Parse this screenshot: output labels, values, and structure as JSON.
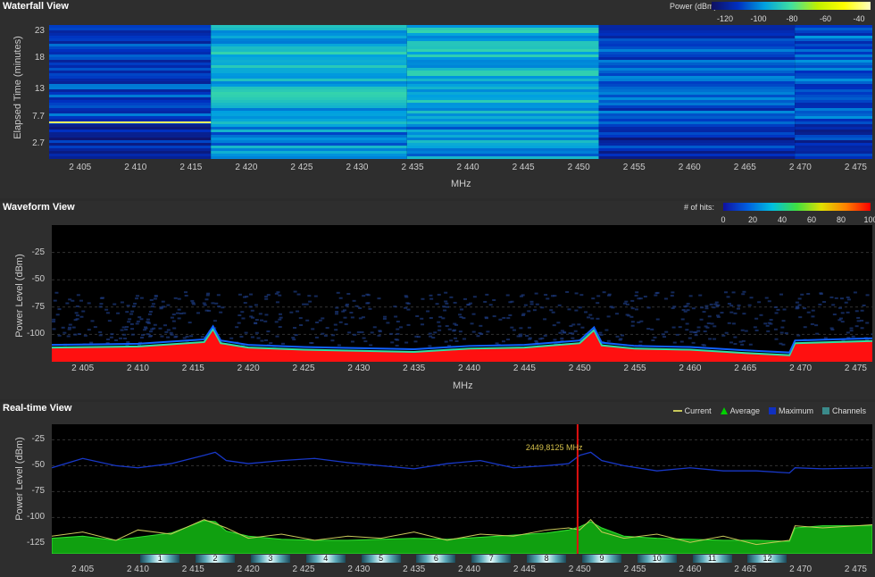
{
  "waterfall": {
    "title": "Waterfall View",
    "scale_label": "Power (dBm):",
    "scale_ticks": [
      "-120",
      "-100",
      "-80",
      "-60",
      "-40"
    ],
    "ylabel": "Elapsed Time (minutes)",
    "yticks": [
      "23",
      "18",
      "13",
      "7.7",
      "2.7"
    ],
    "xlabel": "MHz"
  },
  "waveform": {
    "title": "Waveform View",
    "scale_label": "# of hits:",
    "scale_ticks": [
      "0",
      "20",
      "40",
      "60",
      "80",
      "100"
    ],
    "ylabel": "Power Level (dBm)",
    "yticks": [
      "-25",
      "-50",
      "-75",
      "-100"
    ],
    "xlabel": "MHz"
  },
  "realtime": {
    "title": "Real-time View",
    "ylabel": "Power Level (dBm)",
    "yticks": [
      "-25",
      "-50",
      "-75",
      "-100",
      "-125"
    ],
    "legend": [
      {
        "name": "Current",
        "color": "#c8c85a",
        "shape": "line"
      },
      {
        "name": "Average",
        "color": "#00d000",
        "shape": "tri"
      },
      {
        "name": "Maximum",
        "color": "#1030c0",
        "shape": "box"
      },
      {
        "name": "Channels",
        "color": "#3a8a8a",
        "shape": "box"
      }
    ],
    "marker": {
      "label": "2449,8125 MHz",
      "freq": 2449.8125
    },
    "channels": [
      {
        "label": "1",
        "center": 2412
      },
      {
        "label": "2",
        "center": 2417
      },
      {
        "label": "3",
        "center": 2422
      },
      {
        "label": "4",
        "center": 2427
      },
      {
        "label": "5",
        "center": 2432
      },
      {
        "label": "6",
        "center": 2437
      },
      {
        "label": "7",
        "center": 2442
      },
      {
        "label": "8",
        "center": 2447
      },
      {
        "label": "9",
        "center": 2452
      },
      {
        "label": "10",
        "center": 2457
      },
      {
        "label": "11",
        "center": 2462
      },
      {
        "label": "12",
        "center": 2467
      }
    ]
  },
  "xticks": [
    "2 405",
    "2 410",
    "2 415",
    "2 420",
    "2 425",
    "2 430",
    "2 435",
    "2 440",
    "2 445",
    "2 450",
    "2 455",
    "2 460",
    "2 465",
    "2 470",
    "2 475"
  ],
  "chart_data": [
    {
      "type": "heatmap",
      "title": "Waterfall View",
      "xlabel": "MHz",
      "ylabel": "Elapsed Time (minutes)",
      "xlim": [
        2402.2,
        2476.5
      ],
      "ylim": [
        0,
        25
      ],
      "colorbar": {
        "label": "Power (dBm):",
        "range": [
          -120,
          -30
        ]
      },
      "bands": [
        {
          "x": [
            2402.2,
            2416.8
          ],
          "level": -100
        },
        {
          "x": [
            2416.8,
            2434.5
          ],
          "level": -80
        },
        {
          "x": [
            2434.5,
            2451.8
          ],
          "level": -78
        },
        {
          "x": [
            2451.8,
            2469.5
          ],
          "level": -98
        },
        {
          "x": [
            2469.5,
            2476.5
          ],
          "level": -95
        }
      ]
    },
    {
      "type": "heatmap",
      "title": "Waveform View",
      "xlabel": "MHz",
      "ylabel": "Power Level (dBm)",
      "xlim": [
        2402.2,
        2476.5
      ],
      "ylim": [
        -125,
        0
      ],
      "colorbar": {
        "label": "# of hits:",
        "range": [
          0,
          100
        ]
      },
      "noise_floor": {
        "x": [
          2402.2,
          2410,
          2416,
          2416.8,
          2417.5,
          2420,
          2425,
          2430,
          2435,
          2440,
          2445,
          2450,
          2451.3,
          2452,
          2455,
          2460,
          2465,
          2469,
          2469.5,
          2476.5
        ],
        "y": [
          -112,
          -111,
          -107,
          -95,
          -108,
          -112,
          -114,
          -115,
          -116,
          -113,
          -112,
          -108,
          -96,
          -110,
          -113,
          -114,
          -117,
          -119,
          -108,
          -106
        ]
      }
    },
    {
      "type": "line",
      "title": "Real-time View",
      "xlabel": "",
      "ylabel": "Power Level (dBm)",
      "xlim": [
        2402.2,
        2476.5
      ],
      "ylim": [
        -135,
        -10
      ],
      "x": [
        2402.2,
        2405,
        2408,
        2410,
        2413,
        2416,
        2417,
        2418,
        2420,
        2423,
        2426,
        2429,
        2432,
        2435,
        2438,
        2441,
        2444,
        2447,
        2449,
        2450,
        2451,
        2452,
        2454,
        2457,
        2460,
        2463,
        2466,
        2469,
        2469.5,
        2472,
        2476.5
      ],
      "series": [
        {
          "name": "Average",
          "values": [
            -120,
            -118,
            -122,
            -119,
            -115,
            -103,
            -104,
            -113,
            -118,
            -121,
            -122,
            -122,
            -121,
            -120,
            -121,
            -119,
            -117,
            -115,
            -112,
            -109,
            -104,
            -110,
            -118,
            -120,
            -121,
            -122,
            -122,
            -123,
            -110,
            -108,
            -108
          ]
        },
        {
          "name": "Maximum",
          "values": [
            -52,
            -43,
            -50,
            -52,
            -48,
            -40,
            -37,
            -45,
            -48,
            -45,
            -43,
            -47,
            -50,
            -53,
            -48,
            -45,
            -52,
            -50,
            -48,
            -40,
            -37,
            -45,
            -50,
            -55,
            -52,
            -55,
            -55,
            -57,
            -52,
            -53,
            -52
          ]
        },
        {
          "name": "Current",
          "values": [
            -118,
            -114,
            -122,
            -112,
            -116,
            -102,
            -106,
            -110,
            -120,
            -116,
            -122,
            -118,
            -120,
            -114,
            -122,
            -116,
            -118,
            -112,
            -110,
            -112,
            -102,
            -114,
            -120,
            -116,
            -124,
            -118,
            -126,
            -122,
            -108,
            -110,
            -107
          ]
        }
      ]
    }
  ]
}
